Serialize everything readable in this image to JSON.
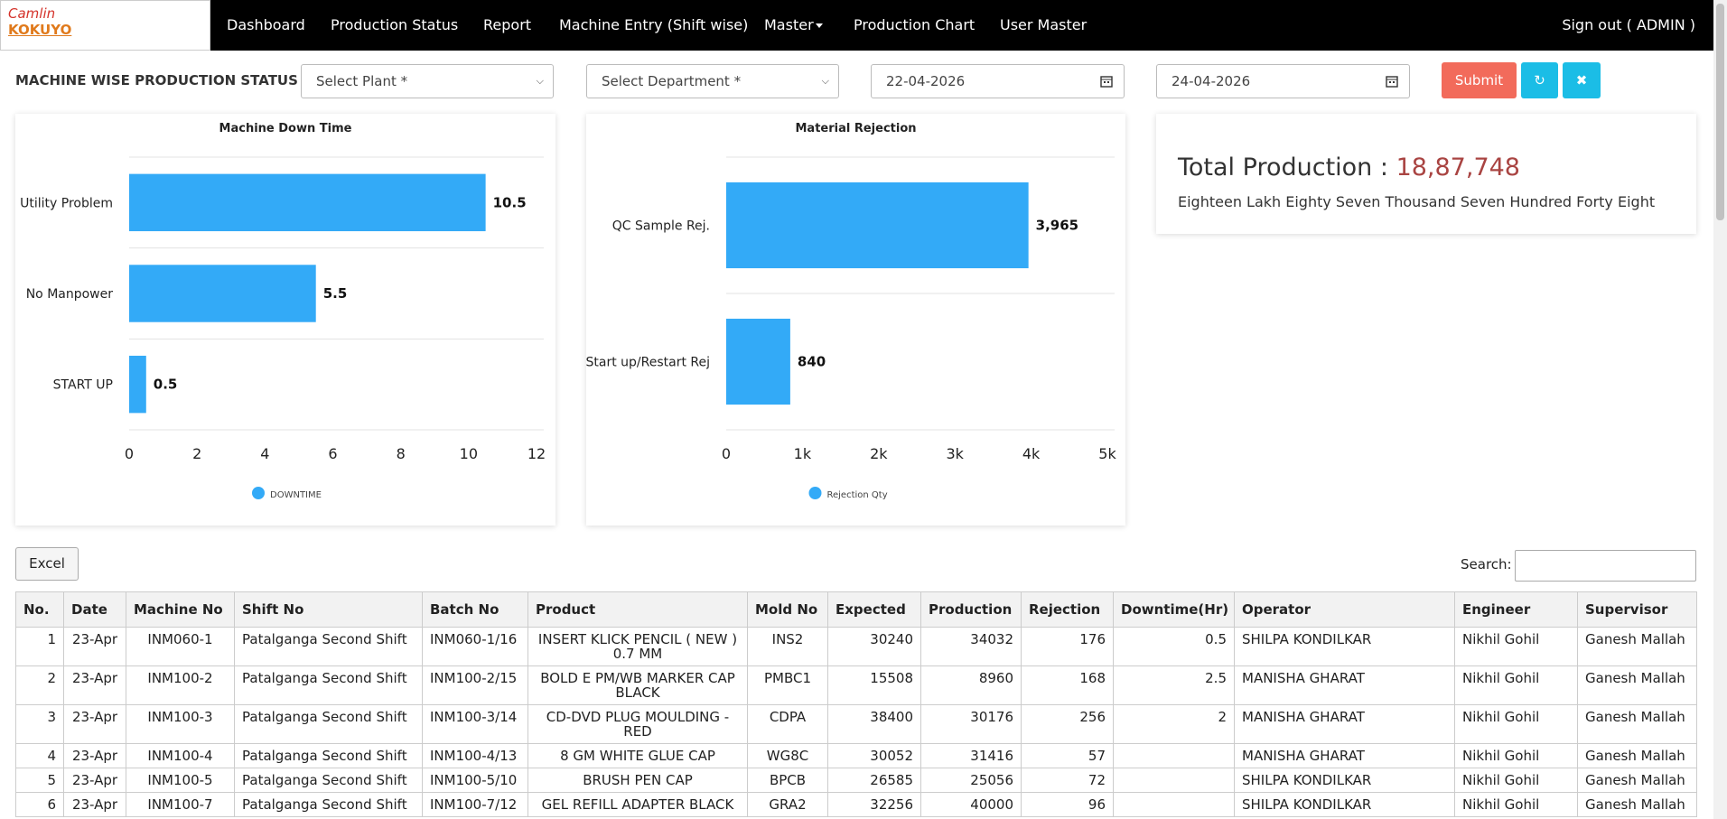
{
  "nav": {
    "logo_top": "Camlin",
    "logo_bottom": "KOKUYO",
    "items": [
      "Dashboard",
      "Production Status",
      "Report",
      "Machine Entry (Shift wise)",
      "Master",
      "Production Chart",
      "User Master"
    ],
    "signout": "Sign out ( ADMIN )"
  },
  "filters": {
    "title": "MACHINE WISE PRODUCTION STATUS",
    "plant": "Select Plant *",
    "department": "Select Department *",
    "from_date": "22-04-2026",
    "to_date": "24-04-2026",
    "submit": "Submit"
  },
  "chart_data": [
    {
      "type": "bar",
      "orientation": "horizontal",
      "title": "Machine Down Time",
      "categories": [
        "Utility Problem",
        "No Manpower",
        "START UP"
      ],
      "series": [
        {
          "name": "DOWNTIME",
          "color": "#33aaf7",
          "values": [
            10.5,
            5.5,
            0.5
          ]
        }
      ],
      "xlim": [
        0,
        12
      ],
      "xticks": [
        0,
        2,
        4,
        6,
        8,
        10,
        12
      ]
    },
    {
      "type": "bar",
      "orientation": "horizontal",
      "title": "Material Rejection",
      "categories": [
        "QC Sample Rej.",
        "Start up/Restart Rej"
      ],
      "series": [
        {
          "name": "Rejection Qty",
          "color": "#33aaf7",
          "values": [
            3965,
            840
          ],
          "value_labels": [
            "3,965",
            "840"
          ]
        }
      ],
      "xlim": [
        0,
        5000
      ],
      "xticks": [
        0,
        {
          "value": 1000,
          "label": "1k"
        },
        {
          "value": 2000,
          "label": "2k"
        },
        {
          "value": 3000,
          "label": "3k"
        },
        {
          "value": 4000,
          "label": "4k"
        },
        {
          "value": 5000,
          "label": "5k"
        }
      ]
    }
  ],
  "total": {
    "label": "Total Production :",
    "value": "18,87,748",
    "words": "Eighteen Lakh Eighty Seven Thousand Seven Hundred Forty Eight"
  },
  "table": {
    "excel": "Excel",
    "search": "Search:",
    "columns": [
      "No.",
      "Date",
      "Machine No",
      "Shift No",
      "Batch No",
      "Product",
      "Mold No",
      "Expected",
      "Production",
      "Rejection",
      "Downtime(Hr)",
      "Operator",
      "Engineer",
      "Supervisor"
    ],
    "rows": [
      [
        "1",
        "23-Apr",
        "INM060-1",
        "Patalganga Second Shift",
        "INM060-1/16",
        "INSERT KLICK PENCIL ( NEW ) 0.7 MM",
        "INS2",
        "30240",
        "34032",
        "176",
        "0.5",
        "SHILPA KONDILKAR",
        "Nikhil Gohil",
        "Ganesh Mallah"
      ],
      [
        "2",
        "23-Apr",
        "INM100-2",
        "Patalganga Second Shift",
        "INM100-2/15",
        "BOLD E PM/WB MARKER CAP BLACK",
        "PMBC1",
        "15508",
        "8960",
        "168",
        "2.5",
        "MANISHA GHARAT",
        "Nikhil Gohil",
        "Ganesh Mallah"
      ],
      [
        "3",
        "23-Apr",
        "INM100-3",
        "Patalganga Second Shift",
        "INM100-3/14",
        "CD-DVD PLUG MOULDING - RED",
        "CDPA",
        "38400",
        "30176",
        "256",
        "2",
        "MANISHA GHARAT",
        "Nikhil Gohil",
        "Ganesh Mallah"
      ],
      [
        "4",
        "23-Apr",
        "INM100-4",
        "Patalganga Second Shift",
        "INM100-4/13",
        "8 GM WHITE GLUE CAP",
        "WG8C",
        "30052",
        "31416",
        "57",
        null,
        "MANISHA GHARAT",
        "Nikhil Gohil",
        "Ganesh Mallah"
      ],
      [
        "5",
        "23-Apr",
        "INM100-5",
        "Patalganga Second Shift",
        "INM100-5/10",
        "BRUSH PEN CAP",
        "BPCB",
        "26585",
        "25056",
        "72",
        null,
        "SHILPA KONDILKAR",
        "Nikhil Gohil",
        "Ganesh Mallah"
      ],
      [
        "6",
        "23-Apr",
        "INM100-7",
        "Patalganga Second Shift",
        "INM100-7/12",
        "GEL REFILL ADAPTER BLACK",
        "GRA2",
        "32256",
        "40000",
        "96",
        null,
        "SHILPA KONDILKAR",
        "Nikhil Gohil",
        "Ganesh Mallah"
      ]
    ]
  }
}
